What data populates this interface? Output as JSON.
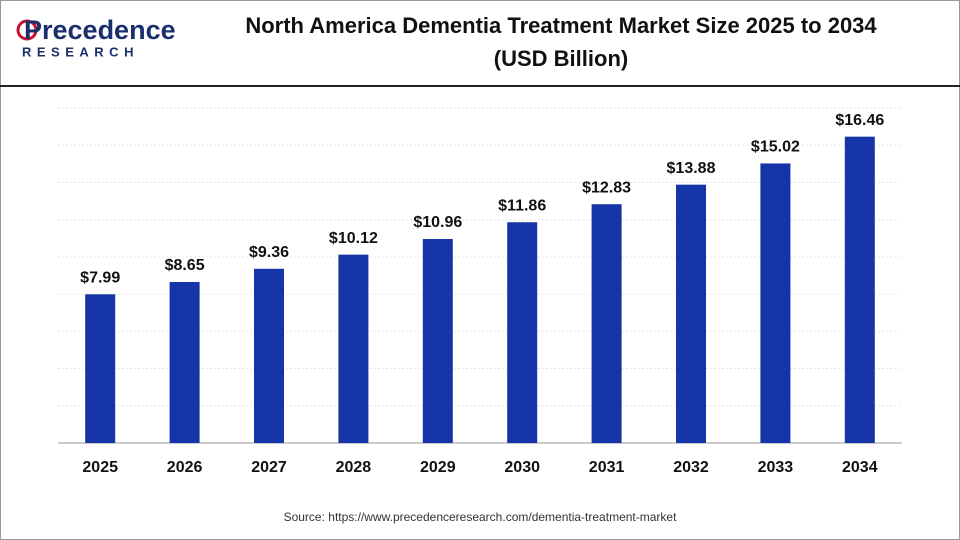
{
  "logo": {
    "name": "Precedence",
    "tagline": "RESEARCH"
  },
  "chart_data": {
    "type": "bar",
    "title": "North America Dementia Treatment Market Size 2025 to 2034",
    "subtitle": "(USD Billion)",
    "categories": [
      "2025",
      "2026",
      "2027",
      "2028",
      "2029",
      "2030",
      "2031",
      "2032",
      "2033",
      "2034"
    ],
    "values": [
      7.99,
      8.65,
      9.36,
      10.12,
      10.96,
      11.86,
      12.83,
      13.88,
      15.02,
      16.46
    ],
    "value_labels": [
      "$7.99",
      "$8.65",
      "$9.36",
      "$10.12",
      "$10.96",
      "$11.86",
      "$12.83",
      "$13.88",
      "$15.02",
      "$16.46"
    ],
    "color": "#1534a8",
    "ylim": [
      0,
      18
    ],
    "yticks": [
      0,
      2,
      4,
      6,
      8,
      10,
      12,
      14,
      16,
      18
    ],
    "grid": true,
    "source": "Source: https://www.precedenceresearch.com/dementia-treatment-market"
  }
}
